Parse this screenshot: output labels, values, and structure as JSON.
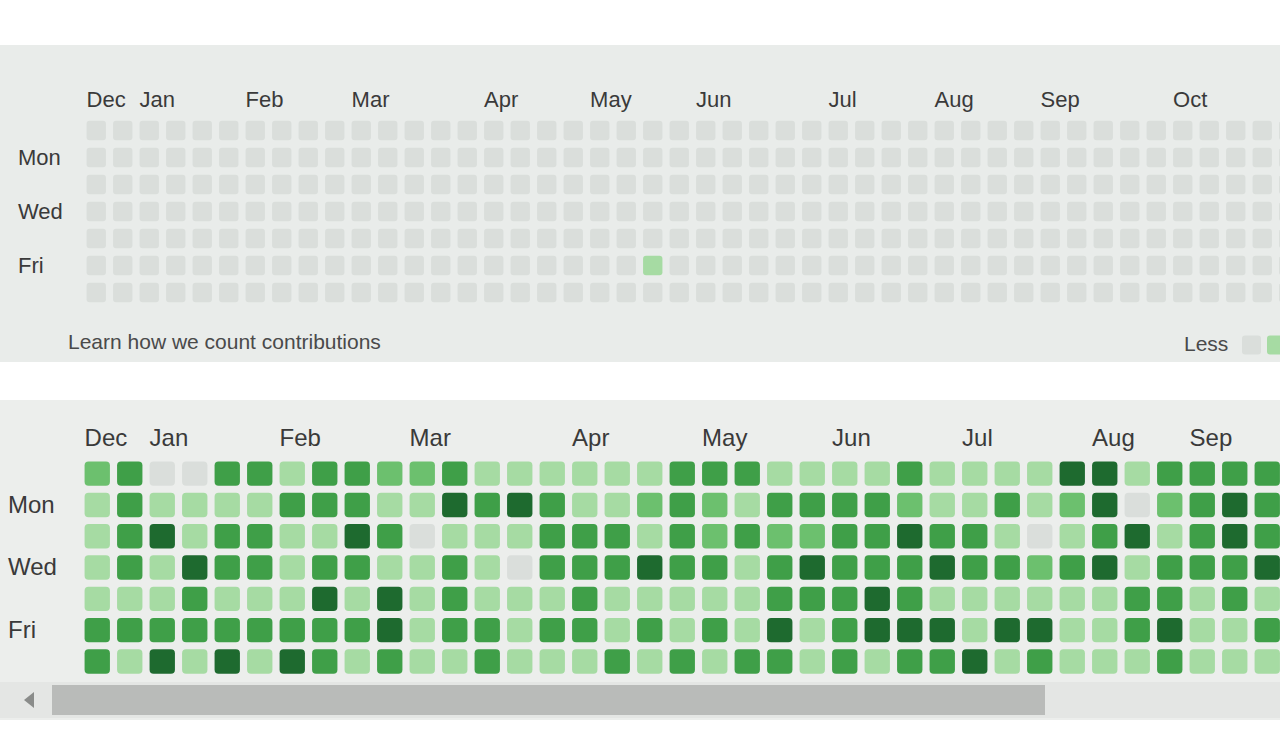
{
  "chart_data": [
    {
      "type": "heatmap",
      "categories": [
        "Dec",
        null,
        "Jan",
        null,
        null,
        null,
        "Feb",
        null,
        null,
        null,
        "Mar",
        null,
        null,
        null,
        null,
        "Apr",
        null,
        null,
        null,
        "May",
        null,
        null,
        null,
        "Jun",
        null,
        null,
        null,
        null,
        "Jul",
        null,
        null,
        null,
        "Aug",
        null,
        null,
        null,
        "Sep",
        null,
        null,
        null,
        null,
        "Oct",
        null,
        null,
        null,
        null
      ],
      "y_categories": [
        null,
        "Mon",
        null,
        "Wed",
        null,
        "Fri",
        null
      ],
      "cells": [
        [
          0,
          0,
          0,
          0,
          0,
          0,
          0,
          0,
          0,
          0,
          0,
          0,
          0,
          0,
          0,
          0,
          0,
          0,
          0,
          0,
          0,
          0,
          0,
          0,
          0,
          0,
          0,
          0,
          0,
          0,
          0,
          0,
          0,
          0,
          0,
          0,
          0,
          0,
          0,
          0,
          0,
          0,
          0,
          0,
          0,
          0
        ],
        [
          0,
          0,
          0,
          0,
          0,
          0,
          0,
          0,
          0,
          0,
          0,
          0,
          0,
          0,
          0,
          0,
          0,
          0,
          0,
          0,
          0,
          0,
          0,
          0,
          0,
          0,
          0,
          0,
          0,
          0,
          0,
          0,
          0,
          0,
          0,
          0,
          0,
          0,
          0,
          0,
          0,
          0,
          0,
          0,
          0,
          0
        ],
        [
          0,
          0,
          0,
          0,
          0,
          0,
          0,
          0,
          0,
          0,
          0,
          0,
          0,
          0,
          0,
          0,
          0,
          0,
          0,
          0,
          0,
          0,
          0,
          0,
          0,
          0,
          0,
          0,
          0,
          0,
          0,
          0,
          0,
          0,
          0,
          0,
          0,
          0,
          0,
          0,
          0,
          0,
          0,
          0,
          0,
          0
        ],
        [
          0,
          0,
          0,
          0,
          0,
          0,
          0,
          0,
          0,
          0,
          0,
          0,
          0,
          0,
          0,
          0,
          0,
          0,
          0,
          0,
          0,
          0,
          0,
          0,
          0,
          0,
          0,
          0,
          0,
          0,
          0,
          0,
          0,
          0,
          0,
          0,
          0,
          0,
          0,
          0,
          0,
          0,
          0,
          0,
          0,
          0
        ],
        [
          0,
          0,
          0,
          0,
          0,
          0,
          0,
          0,
          0,
          0,
          0,
          0,
          0,
          0,
          0,
          0,
          0,
          0,
          0,
          0,
          0,
          0,
          0,
          0,
          0,
          0,
          0,
          0,
          0,
          0,
          0,
          0,
          0,
          0,
          0,
          0,
          0,
          0,
          0,
          0,
          0,
          0,
          0,
          0,
          0,
          0
        ],
        [
          0,
          0,
          0,
          0,
          0,
          0,
          0,
          0,
          0,
          0,
          0,
          0,
          0,
          0,
          0,
          0,
          0,
          0,
          0,
          0,
          0,
          1,
          0,
          0,
          0,
          0,
          0,
          0,
          0,
          0,
          0,
          0,
          0,
          0,
          0,
          0,
          0,
          0,
          0,
          0,
          0,
          0,
          0,
          0,
          0,
          0
        ],
        [
          0,
          0,
          0,
          0,
          0,
          0,
          0,
          0,
          0,
          0,
          0,
          0,
          0,
          0,
          0,
          0,
          0,
          0,
          0,
          0,
          0,
          0,
          0,
          0,
          0,
          0,
          0,
          0,
          0,
          0,
          0,
          0,
          0,
          0,
          0,
          0,
          0,
          0,
          0,
          0,
          0,
          0,
          0,
          0,
          0,
          0
        ]
      ],
      "zlim": [
        0,
        4
      ],
      "colors": [
        "#dadedb",
        "#a6dba3",
        "#6cc06e",
        "#3f9f48",
        "#1e6a2f"
      ],
      "annotations": [
        "Learn how we count contributions"
      ],
      "scale_label": "Less"
    },
    {
      "type": "heatmap",
      "categories": [
        "Dec",
        null,
        "Jan",
        null,
        null,
        null,
        "Feb",
        null,
        null,
        null,
        "Mar",
        null,
        null,
        null,
        null,
        "Apr",
        null,
        null,
        null,
        "May",
        null,
        null,
        null,
        "Jun",
        null,
        null,
        null,
        "Jul",
        null,
        null,
        null,
        "Aug",
        null,
        null,
        "Sep",
        null,
        null
      ],
      "y_categories": [
        null,
        "Mon",
        null,
        "Wed",
        null,
        "Fri",
        null
      ],
      "cells": [
        [
          2,
          3,
          0,
          0,
          3,
          3,
          1,
          3,
          3,
          2,
          2,
          3,
          1,
          1,
          1,
          1,
          1,
          1,
          3,
          3,
          3,
          1,
          1,
          1,
          1,
          3,
          1,
          1,
          1,
          1,
          4,
          4,
          1,
          3,
          3,
          3,
          3
        ],
        [
          1,
          3,
          1,
          1,
          1,
          1,
          3,
          3,
          3,
          1,
          1,
          4,
          3,
          4,
          3,
          1,
          1,
          2,
          3,
          2,
          1,
          3,
          3,
          3,
          3,
          2,
          1,
          1,
          3,
          1,
          2,
          4,
          0,
          2,
          3,
          4,
          3
        ],
        [
          1,
          3,
          4,
          1,
          3,
          3,
          1,
          1,
          4,
          3,
          0,
          1,
          1,
          1,
          3,
          3,
          3,
          1,
          3,
          2,
          3,
          2,
          2,
          3,
          3,
          4,
          3,
          3,
          1,
          0,
          1,
          3,
          4,
          1,
          3,
          4,
          3
        ],
        [
          1,
          3,
          1,
          4,
          3,
          3,
          1,
          3,
          3,
          1,
          1,
          3,
          1,
          0,
          3,
          3,
          3,
          4,
          3,
          3,
          1,
          3,
          4,
          3,
          3,
          3,
          4,
          3,
          3,
          2,
          3,
          4,
          1,
          3,
          3,
          3,
          4
        ],
        [
          1,
          1,
          1,
          3,
          1,
          1,
          1,
          4,
          1,
          4,
          1,
          3,
          1,
          1,
          1,
          3,
          1,
          1,
          1,
          1,
          1,
          3,
          3,
          3,
          4,
          3,
          1,
          1,
          1,
          1,
          1,
          1,
          3,
          3,
          1,
          3,
          1
        ],
        [
          3,
          3,
          3,
          3,
          3,
          3,
          3,
          3,
          3,
          4,
          1,
          3,
          3,
          1,
          3,
          3,
          1,
          3,
          1,
          3,
          1,
          4,
          1,
          3,
          4,
          4,
          4,
          1,
          4,
          4,
          1,
          1,
          3,
          4,
          1,
          1,
          3
        ],
        [
          3,
          1,
          4,
          1,
          4,
          1,
          4,
          3,
          1,
          3,
          1,
          1,
          3,
          1,
          1,
          1,
          3,
          1,
          3,
          1,
          3,
          3,
          1,
          3,
          1,
          3,
          3,
          4,
          1,
          3,
          1,
          1,
          1,
          3,
          1,
          1,
          1
        ]
      ],
      "zlim": [
        0,
        4
      ],
      "colors": [
        "#dadedb",
        "#a6dba3",
        "#6cc06e",
        "#3f9f48",
        "#1e6a2f"
      ]
    }
  ]
}
